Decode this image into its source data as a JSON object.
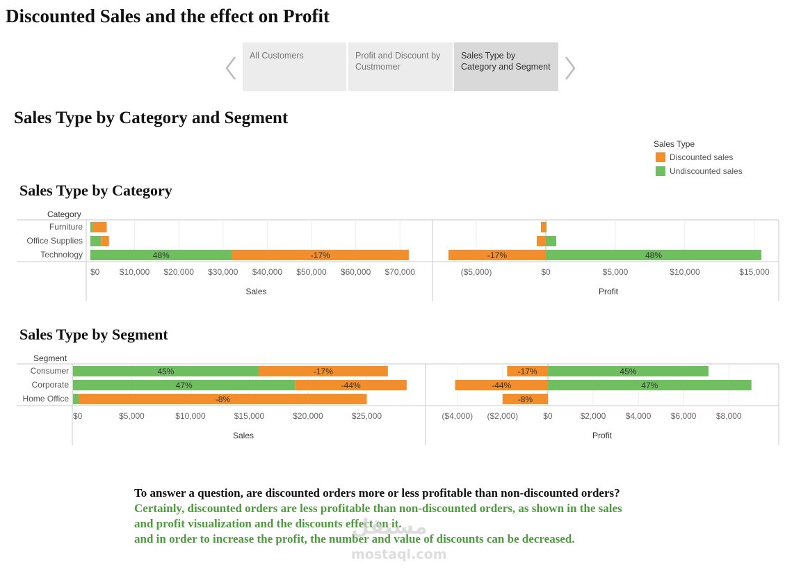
{
  "page_title": "Discounted Sales and the effect on Profit",
  "story_tabs": [
    {
      "label": "All Customers",
      "active": false
    },
    {
      "label": "Profit and Discount by Custmomer",
      "active": false
    },
    {
      "label": "Sales Type by Category and Segment",
      "active": true
    }
  ],
  "dashboard_title": "Sales Type by Category and Segment",
  "legend": {
    "title": "Sales Type",
    "items": [
      {
        "label": "Discounted sales",
        "color": "#f28e2b"
      },
      {
        "label": "Undiscounted sales",
        "color": "#6fbf61"
      }
    ]
  },
  "colors": {
    "discounted": "#f28e2b",
    "undiscounted": "#6fbf61",
    "grid": "#d9d9d9",
    "axis": "#c8c8c8"
  },
  "chart_data": [
    {
      "id": "category",
      "type": "bar",
      "orientation": "horizontal",
      "stacked": true,
      "title": "Sales Type by Category",
      "dimension_label": "Category",
      "categories": [
        "Furniture",
        "Office Supplies",
        "Technology"
      ],
      "sales": {
        "xlabel": "Sales",
        "xlim": [
          0,
          75000
        ],
        "ticks": [
          0,
          10000,
          20000,
          30000,
          40000,
          50000,
          60000,
          70000
        ],
        "tick_labels": [
          "$0",
          "$10,000",
          "$20,000",
          "$30,000",
          "$40,000",
          "$50,000",
          "$60,000",
          "$70,000"
        ],
        "series": [
          {
            "name": "Undiscounted sales",
            "values": [
              500,
              2400,
              32000
            ],
            "labels": [
              "",
              "",
              "48%"
            ]
          },
          {
            "name": "Discounted sales",
            "values": [
              3200,
              1800,
              40000
            ],
            "labels": [
              "",
              "",
              "-17%"
            ]
          }
        ]
      },
      "profit": {
        "xlabel": "Profit",
        "xlim": [
          -7000,
          16000
        ],
        "ticks": [
          -5000,
          0,
          5000,
          10000,
          15000
        ],
        "tick_labels": [
          "($5,000)",
          "$0",
          "$5,000",
          "$10,000",
          "$15,000"
        ],
        "series": [
          {
            "name": "Discounted sales",
            "values": [
              -350,
              -650,
              -7000
            ],
            "labels": [
              "",
              "",
              "-17%"
            ]
          },
          {
            "name": "Undiscounted sales",
            "values": [
              50,
              750,
              15500
            ],
            "labels": [
              "",
              "",
              "48%"
            ]
          }
        ]
      }
    },
    {
      "id": "segment",
      "type": "bar",
      "orientation": "horizontal",
      "stacked": true,
      "title": "Sales Type by Segment",
      "dimension_label": "Segment",
      "categories": [
        "Consumer",
        "Corporate",
        "Home Office"
      ],
      "sales": {
        "xlabel": "Sales",
        "xlim": [
          0,
          29000
        ],
        "ticks": [
          0,
          5000,
          10000,
          15000,
          20000,
          25000
        ],
        "tick_labels": [
          "$0",
          "$5,000",
          "$10,000",
          "$15,000",
          "$20,000",
          "$25,000"
        ],
        "series": [
          {
            "name": "Undiscounted sales",
            "values": [
              15800,
              18900,
              500
            ],
            "labels": [
              "45%",
              "47%",
              ""
            ]
          },
          {
            "name": "Discounted sales",
            "values": [
              11000,
              9500,
              24500
            ],
            "labels": [
              "-17%",
              "-44%",
              "-8%"
            ]
          }
        ]
      },
      "profit": {
        "xlabel": "Profit",
        "xlim": [
          -4700,
          9500
        ],
        "ticks": [
          -4000,
          -2000,
          0,
          2000,
          4000,
          6000,
          8000
        ],
        "tick_labels": [
          "($4,000)",
          "($2,000)",
          "$0",
          "$2,000",
          "$4,000",
          "$6,000",
          "$8,000"
        ],
        "series": [
          {
            "name": "Discounted sales",
            "values": [
              -1800,
              -4100,
              -2000
            ],
            "labels": [
              "-17%",
              "-44%",
              "-8%"
            ]
          },
          {
            "name": "Undiscounted sales",
            "values": [
              7100,
              9000,
              0
            ],
            "labels": [
              "45%",
              "47%",
              ""
            ]
          }
        ]
      }
    }
  ],
  "commentary": {
    "question": "To answer a question, are discounted orders more or less profitable than non-discounted orders?",
    "answer_lines": [
      "Certainly, discounted orders are less profitable than non-discounted orders, as shown in the sales",
      "and profit visualization and the discounts effect on it.",
      "and in order to increase the profit, the number and value of discounts can be decreased."
    ]
  },
  "watermark": {
    "arabic": "مستقل",
    "latin": "mostaql.com"
  }
}
